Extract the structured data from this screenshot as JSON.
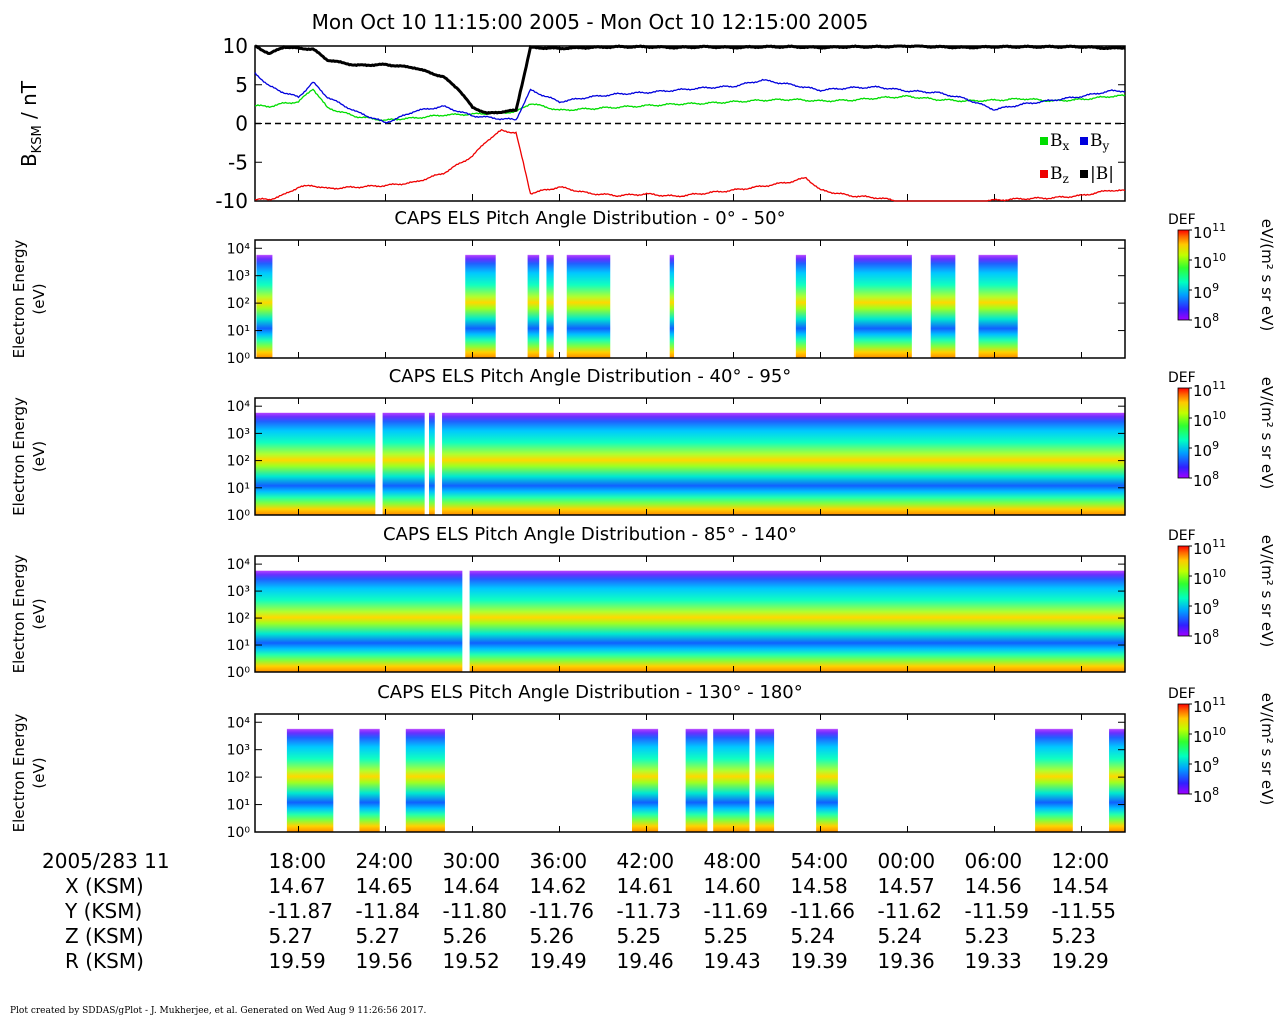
{
  "chart_data": [
    {
      "type": "line",
      "title": "Mon Oct 10 11:15:00 2005 - Mon Oct 10 12:15:00 2005",
      "ylabel_main": "B",
      "ylabel_sub": "KSM",
      "ylabel_unit": " / nT",
      "ylim": [
        -10,
        10
      ],
      "yticks": [
        10,
        5,
        0,
        -5,
        -10
      ],
      "yticklabels": [
        "10",
        "5",
        "0",
        "-5",
        "-10"
      ],
      "xlim_minutes": [
        15,
        75
      ],
      "zero_line": true,
      "legend_position": "bottom-right",
      "series": [
        {
          "name": "B",
          "sub": "x",
          "color": "#00dd00",
          "x": [
            15,
            16,
            17,
            18,
            19,
            20,
            22,
            24,
            25,
            26,
            28,
            30,
            32,
            33,
            34,
            36,
            38,
            40,
            42,
            44,
            46,
            48,
            50,
            52,
            54,
            56,
            58,
            60,
            62,
            64,
            66,
            68,
            70,
            72,
            74,
            75
          ],
          "y": [
            2.3,
            2.2,
            2.6,
            2.8,
            4.5,
            2.0,
            0.9,
            0.4,
            0.6,
            0.7,
            1.1,
            1.2,
            1.4,
            1.5,
            2.6,
            1.7,
            1.9,
            2.1,
            2.3,
            2.5,
            2.6,
            2.8,
            3.0,
            3.1,
            2.9,
            3.0,
            3.3,
            3.5,
            3.1,
            2.9,
            3.0,
            3.2,
            2.9,
            3.1,
            3.5,
            3.6
          ]
        },
        {
          "name": "B",
          "sub": "y",
          "color": "#0000dd",
          "x": [
            15,
            16,
            17,
            18,
            19,
            20,
            22,
            24,
            25,
            26,
            28,
            30,
            32,
            33,
            34,
            36,
            38,
            40,
            42,
            44,
            46,
            48,
            50,
            52,
            54,
            56,
            58,
            60,
            62,
            64,
            66,
            68,
            70,
            72,
            74,
            75
          ],
          "y": [
            6.5,
            4.8,
            4.0,
            3.4,
            5.3,
            3.4,
            1.5,
            0.1,
            0.8,
            1.6,
            2.2,
            1.0,
            0.6,
            0.5,
            4.3,
            2.8,
            3.4,
            3.8,
            4.0,
            4.3,
            4.6,
            4.8,
            5.6,
            5.0,
            4.3,
            4.6,
            4.7,
            4.2,
            4.0,
            3.2,
            1.8,
            2.5,
            3.0,
            3.5,
            4.2,
            4.2
          ]
        },
        {
          "name": "B",
          "sub": "z",
          "color": "#ee0000",
          "x": [
            15,
            16,
            17,
            18,
            19,
            20,
            22,
            24,
            26,
            28,
            30,
            31,
            32,
            33,
            34,
            36,
            38,
            40,
            42,
            44,
            46,
            48,
            50,
            52,
            53,
            54,
            56,
            58,
            60,
            62,
            64,
            66,
            68,
            70,
            72,
            74,
            75
          ],
          "y": [
            -9.8,
            -9.8,
            -9.2,
            -8.2,
            -8.0,
            -8.4,
            -8.2,
            -8.0,
            -7.6,
            -6.4,
            -4.2,
            -2.2,
            -0.9,
            -1.2,
            -9.0,
            -8.2,
            -9.0,
            -9.3,
            -9.1,
            -9.4,
            -9.0,
            -8.6,
            -8.1,
            -7.5,
            -7.0,
            -8.6,
            -9.3,
            -9.6,
            -10.2,
            -10.4,
            -10.2,
            -9.9,
            -9.7,
            -9.6,
            -9.3,
            -8.6,
            -8.7
          ]
        },
        {
          "name": "|B|",
          "sub": "",
          "color": "#000000",
          "x": [
            15,
            16,
            17,
            18,
            19,
            20,
            22,
            24,
            26,
            28,
            29,
            30,
            31,
            32,
            33,
            34,
            36,
            38,
            40,
            42,
            44,
            46,
            48,
            50,
            52,
            54,
            56,
            58,
            60,
            62,
            64,
            66,
            68,
            70,
            72,
            74,
            75
          ],
          "y": [
            10.0,
            9.0,
            9.9,
            9.7,
            9.6,
            8.2,
            7.5,
            7.6,
            7.2,
            6.0,
            4.5,
            2.1,
            1.3,
            1.5,
            1.7,
            9.8,
            9.7,
            9.8,
            9.9,
            9.9,
            9.8,
            9.9,
            9.8,
            9.9,
            9.9,
            9.8,
            9.9,
            9.9,
            10.0,
            9.9,
            9.8,
            9.9,
            9.9,
            9.9,
            9.9,
            9.7,
            9.8
          ]
        }
      ]
    },
    {
      "type": "heatmap",
      "title": "CAPS ELS Pitch Angle Distribution - 0° - 50°",
      "ylabel": "Electron Energy",
      "yunit": "(eV)",
      "y_scale": "log",
      "ylim": [
        1,
        20000
      ],
      "yticks": [
        1,
        10,
        100,
        1000,
        10000
      ],
      "colorbar": {
        "label": "DEF",
        "unit": "eV/(m² s sr eV)",
        "scale": "log",
        "range": [
          100000000.0,
          100000000000.0
        ],
        "ticks": [
          100000000000.0,
          10000000000.0,
          1000000000.0,
          100000000.0
        ]
      },
      "data_intervals_min": [
        [
          15.1,
          16.2
        ],
        [
          29.5,
          31.6
        ],
        [
          33.8,
          34.6
        ],
        [
          35.1,
          35.6
        ],
        [
          36.5,
          39.5
        ],
        [
          43.6,
          43.9
        ],
        [
          52.3,
          53.0
        ],
        [
          56.3,
          60.3
        ],
        [
          61.6,
          63.3
        ],
        [
          64.9,
          67.6
        ]
      ]
    },
    {
      "type": "heatmap",
      "title": "CAPS ELS Pitch Angle Distribution - 40° - 95°",
      "ylabel": "Electron Energy",
      "yunit": "(eV)",
      "y_scale": "log",
      "ylim": [
        1,
        20000
      ],
      "yticks": [
        1,
        10,
        100,
        1000,
        10000
      ],
      "colorbar": {
        "label": "DEF",
        "unit": "eV/(m² s sr eV)",
        "scale": "log",
        "range": [
          100000000.0,
          100000000000.0
        ],
        "ticks": [
          100000000000.0,
          10000000000.0,
          1000000000.0,
          100000000.0
        ]
      },
      "data_intervals_min": [
        [
          15.0,
          23.3
        ],
        [
          23.8,
          26.7
        ],
        [
          27.0,
          27.4
        ],
        [
          27.9,
          75.0
        ]
      ]
    },
    {
      "type": "heatmap",
      "title": "CAPS ELS Pitch Angle Distribution - 85° - 140°",
      "ylabel": "Electron Energy",
      "yunit": "(eV)",
      "y_scale": "log",
      "ylim": [
        1,
        20000
      ],
      "yticks": [
        1,
        10,
        100,
        1000,
        10000
      ],
      "colorbar": {
        "label": "DEF",
        "unit": "eV/(m² s sr eV)",
        "scale": "log",
        "range": [
          100000000.0,
          100000000000.0
        ],
        "ticks": [
          100000000000.0,
          10000000000.0,
          1000000000.0,
          100000000.0
        ]
      },
      "data_intervals_min": [
        [
          15.0,
          29.3
        ],
        [
          29.8,
          75.0
        ]
      ]
    },
    {
      "type": "heatmap",
      "title": "CAPS ELS Pitch Angle Distribution - 130° - 180°",
      "ylabel": "Electron Energy",
      "yunit": "(eV)",
      "y_scale": "log",
      "ylim": [
        1,
        20000
      ],
      "yticks": [
        1,
        10,
        100,
        1000,
        10000
      ],
      "colorbar": {
        "label": "DEF",
        "unit": "eV/(m² s sr eV)",
        "scale": "log",
        "range": [
          100000000.0,
          100000000000.0
        ],
        "ticks": [
          100000000000.0,
          10000000000.0,
          1000000000.0,
          100000000.0
        ]
      },
      "data_intervals_min": [
        [
          17.2,
          20.4
        ],
        [
          22.2,
          23.6
        ],
        [
          25.4,
          28.1
        ],
        [
          41.0,
          42.8
        ],
        [
          44.7,
          46.2
        ],
        [
          46.6,
          49.1
        ],
        [
          49.5,
          50.8
        ],
        [
          53.7,
          55.2
        ],
        [
          68.8,
          71.4
        ],
        [
          73.9,
          75.0
        ]
      ]
    }
  ],
  "time_axis": {
    "date_label": "2005/283 11",
    "tick_minutes": [
      18,
      24,
      30,
      36,
      42,
      48,
      54,
      60,
      66,
      72
    ],
    "tick_labels": [
      "18:00",
      "24:00",
      "30:00",
      "36:00",
      "42:00",
      "48:00",
      "54:00",
      "00:00",
      "06:00",
      "12:00"
    ]
  },
  "ephemeris": [
    {
      "label": "X (KSM)",
      "values": [
        "14.67",
        "14.65",
        "14.64",
        "14.62",
        "14.61",
        "14.60",
        "14.58",
        "14.57",
        "14.56",
        "14.54"
      ]
    },
    {
      "label": "Y (KSM)",
      "values": [
        "-11.87",
        "-11.84",
        "-11.80",
        "-11.76",
        "-11.73",
        "-11.69",
        "-11.66",
        "-11.62",
        "-11.59",
        "-11.55"
      ]
    },
    {
      "label": "Z (KSM)",
      "values": [
        "5.27",
        "5.27",
        "5.26",
        "5.26",
        "5.25",
        "5.25",
        "5.24",
        "5.24",
        "5.23",
        "5.23"
      ]
    },
    {
      "label": "R (KSM)",
      "values": [
        "19.59",
        "19.56",
        "19.52",
        "19.49",
        "19.46",
        "19.43",
        "19.39",
        "19.36",
        "19.33",
        "19.29"
      ]
    }
  ],
  "footer": "Plot created by SDDAS/gPlot - J. Mukherjee, et al.  Generated on Wed Aug 9 11:26:56 2017."
}
